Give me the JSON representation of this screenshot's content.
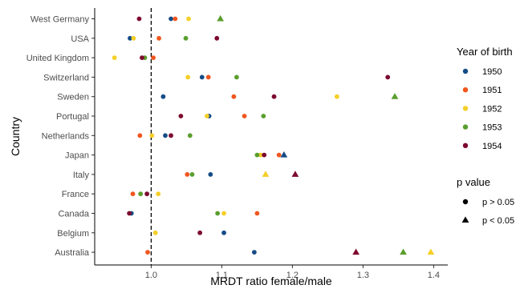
{
  "chart_data": {
    "type": "scatter",
    "xlabel": "MRDT ratio female/male",
    "ylabel": "Country",
    "xlim": [
      0.92,
      1.42
    ],
    "x_ticks": [
      "1.0",
      "1.1",
      "1.2",
      "1.3",
      "1.4"
    ],
    "x_tick_values": [
      1.0,
      1.1,
      1.2,
      1.3,
      1.4
    ],
    "reference_line": 1.0,
    "grid": false,
    "categories": [
      "West Germany",
      "USA",
      "United Kingdom",
      "Switzerland",
      "Sweden",
      "Portugal",
      "Netherlands",
      "Japan",
      "Italy",
      "France",
      "Canada",
      "Belgium",
      "Australia"
    ],
    "legend_color": {
      "title": "Year of birth",
      "position": "right",
      "entries": [
        {
          "label": "1950",
          "color": "#154c86"
        },
        {
          "label": "1951",
          "color": "#f0561e"
        },
        {
          "label": "1952",
          "color": "#f5cf28"
        },
        {
          "label": "1953",
          "color": "#5a9e2d"
        },
        {
          "label": "1954",
          "color": "#7d0a2e"
        }
      ]
    },
    "legend_shape": {
      "title": "p value",
      "position": "right",
      "entries": [
        {
          "label": "p > 0.05",
          "shape": "circle"
        },
        {
          "label": "p < 0.05",
          "shape": "triangle"
        }
      ]
    },
    "series": [
      {
        "name": "1950",
        "color": "#154c86",
        "points": [
          {
            "country": "West Germany",
            "x": 1.028,
            "sig": false
          },
          {
            "country": "USA",
            "x": 0.97,
            "sig": false
          },
          {
            "country": "Switzerland",
            "x": 1.072,
            "sig": false
          },
          {
            "country": "Sweden",
            "x": 1.017,
            "sig": false
          },
          {
            "country": "Portugal",
            "x": 1.082,
            "sig": false
          },
          {
            "country": "Netherlands",
            "x": 1.02,
            "sig": false
          },
          {
            "country": "Japan",
            "x": 1.188,
            "sig": true
          },
          {
            "country": "Italy",
            "x": 1.084,
            "sig": false
          },
          {
            "country": "Canada",
            "x": 0.972,
            "sig": false
          },
          {
            "country": "Belgium",
            "x": 1.103,
            "sig": false
          },
          {
            "country": "Australia",
            "x": 1.146,
            "sig": false
          }
        ]
      },
      {
        "name": "1951",
        "color": "#f0561e",
        "points": [
          {
            "country": "West Germany",
            "x": 1.034,
            "sig": false
          },
          {
            "country": "USA",
            "x": 1.011,
            "sig": false
          },
          {
            "country": "United Kingdom",
            "x": 1.003,
            "sig": false
          },
          {
            "country": "Switzerland",
            "x": 1.081,
            "sig": false
          },
          {
            "country": "Sweden",
            "x": 1.117,
            "sig": false
          },
          {
            "country": "Portugal",
            "x": 1.132,
            "sig": false
          },
          {
            "country": "Netherlands",
            "x": 0.984,
            "sig": false
          },
          {
            "country": "Japan",
            "x": 1.181,
            "sig": false
          },
          {
            "country": "Italy",
            "x": 1.051,
            "sig": false
          },
          {
            "country": "France",
            "x": 0.974,
            "sig": false
          },
          {
            "country": "Canada",
            "x": 1.15,
            "sig": false
          },
          {
            "country": "Australia",
            "x": 0.995,
            "sig": false
          }
        ]
      },
      {
        "name": "1952",
        "color": "#f5cf28",
        "points": [
          {
            "country": "West Germany",
            "x": 1.053,
            "sig": false
          },
          {
            "country": "USA",
            "x": 0.975,
            "sig": false
          },
          {
            "country": "United Kingdom",
            "x": 0.948,
            "sig": false
          },
          {
            "country": "Switzerland",
            "x": 1.052,
            "sig": false
          },
          {
            "country": "Sweden",
            "x": 1.263,
            "sig": false
          },
          {
            "country": "Portugal",
            "x": 1.079,
            "sig": false
          },
          {
            "country": "Netherlands",
            "x": 1.001,
            "sig": false
          },
          {
            "country": "Japan",
            "x": 1.155,
            "sig": false
          },
          {
            "country": "Italy",
            "x": 1.162,
            "sig": true
          },
          {
            "country": "France",
            "x": 1.01,
            "sig": false
          },
          {
            "country": "Canada",
            "x": 1.103,
            "sig": false
          },
          {
            "country": "Belgium",
            "x": 1.006,
            "sig": false
          },
          {
            "country": "Australia",
            "x": 1.396,
            "sig": true
          }
        ]
      },
      {
        "name": "1953",
        "color": "#5a9e2d",
        "points": [
          {
            "country": "West Germany",
            "x": 1.098,
            "sig": true
          },
          {
            "country": "USA",
            "x": 1.049,
            "sig": false
          },
          {
            "country": "United Kingdom",
            "x": 0.991,
            "sig": false
          },
          {
            "country": "Switzerland",
            "x": 1.121,
            "sig": false
          },
          {
            "country": "Sweden",
            "x": 1.345,
            "sig": true
          },
          {
            "country": "Portugal",
            "x": 1.159,
            "sig": false
          },
          {
            "country": "Netherlands",
            "x": 1.055,
            "sig": false
          },
          {
            "country": "Japan",
            "x": 1.15,
            "sig": false
          },
          {
            "country": "Italy",
            "x": 1.058,
            "sig": false
          },
          {
            "country": "France",
            "x": 0.985,
            "sig": false
          },
          {
            "country": "Canada",
            "x": 1.094,
            "sig": false
          },
          {
            "country": "Australia",
            "x": 1.357,
            "sig": true
          }
        ]
      },
      {
        "name": "1954",
        "color": "#7d0a2e",
        "points": [
          {
            "country": "West Germany",
            "x": 0.983,
            "sig": false
          },
          {
            "country": "USA",
            "x": 1.093,
            "sig": false
          },
          {
            "country": "United Kingdom",
            "x": 0.987,
            "sig": false
          },
          {
            "country": "Switzerland",
            "x": 1.335,
            "sig": false
          },
          {
            "country": "Sweden",
            "x": 1.174,
            "sig": false
          },
          {
            "country": "Portugal",
            "x": 1.042,
            "sig": false
          },
          {
            "country": "Netherlands",
            "x": 1.028,
            "sig": false
          },
          {
            "country": "Japan",
            "x": 1.16,
            "sig": false
          },
          {
            "country": "Italy",
            "x": 1.204,
            "sig": true
          },
          {
            "country": "France",
            "x": 0.994,
            "sig": false
          },
          {
            "country": "Canada",
            "x": 0.969,
            "sig": false
          },
          {
            "country": "Belgium",
            "x": 1.069,
            "sig": false
          },
          {
            "country": "Australia",
            "x": 1.29,
            "sig": true
          }
        ]
      }
    ]
  }
}
